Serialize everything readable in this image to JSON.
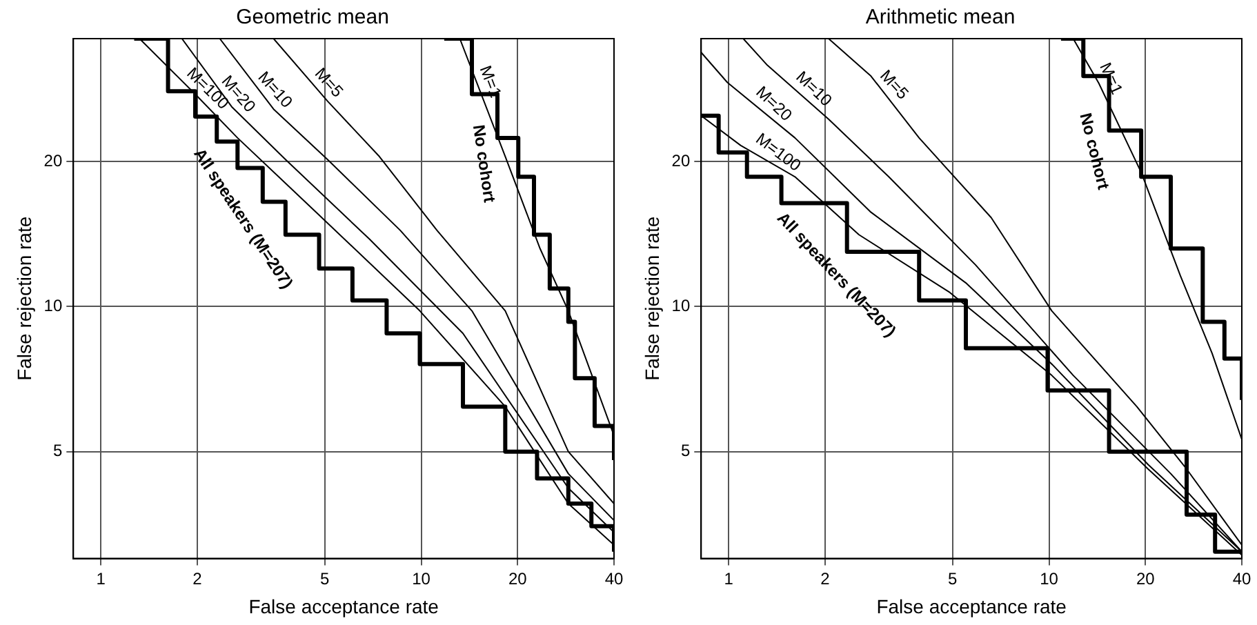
{
  "chart_data": [
    {
      "type": "line",
      "title": "Geometric mean",
      "xlabel": "False acceptance rate",
      "ylabel": "False rejection rate",
      "xlim": [
        0.82,
        40
      ],
      "ylim": [
        3,
        36
      ],
      "xticks": [
        1,
        2,
        5,
        10,
        20,
        40
      ],
      "yticks": [
        5,
        10,
        20
      ],
      "log": "xy",
      "grid": true,
      "legend": false,
      "series": [
        {
          "type": "step",
          "name": "No cohort",
          "color": "#000000",
          "x": [
            11.8,
            14.4,
            17.3,
            20.1,
            22.5,
            25.2,
            28.8,
            30.2,
            34.8,
            40
          ],
          "values": [
            36,
            27.6,
            22.4,
            18.6,
            14.1,
            10.9,
            9.3,
            7.1,
            5.65,
            4.8
          ]
        },
        {
          "type": "line",
          "name": "M=1",
          "color": "#000000",
          "x": [
            13.2,
            18.3,
            23.5,
            28.8,
            40
          ],
          "values": [
            36,
            20.5,
            13.2,
            9.8,
            5.4
          ]
        },
        {
          "type": "line",
          "name": "M=5",
          "color": "#000000",
          "x": [
            3.46,
            5.1,
            7.4,
            11.2,
            18.3,
            28.8,
            40
          ],
          "values": [
            36,
            26.7,
            20.5,
            14.4,
            9.8,
            5,
            3.9
          ]
        },
        {
          "type": "line",
          "name": "M=10",
          "color": "#000000",
          "x": [
            2.35,
            3.46,
            5.1,
            8.6,
            14.4,
            28.8,
            40
          ],
          "values": [
            36,
            25.7,
            20.2,
            14.4,
            9.8,
            4.5,
            3.6
          ]
        },
        {
          "type": "line",
          "name": "M=20",
          "color": "#000000",
          "x": [
            1.79,
            2.56,
            3.77,
            6.9,
            13.5,
            28.8,
            40
          ],
          "values": [
            36,
            26,
            20.2,
            13.8,
            8.8,
            4.2,
            3.4
          ]
        },
        {
          "type": "line",
          "name": "M=100",
          "color": "#000000",
          "x": [
            1.32,
            1.97,
            2.67,
            4.7,
            9.9,
            18.3,
            28.8,
            40
          ],
          "values": [
            36,
            27.6,
            22.4,
            15.7,
            9.8,
            6.2,
            3.9,
            3.2
          ]
        },
        {
          "type": "step",
          "name": "All speakers (M=207)",
          "color": "#000000",
          "x": [
            1.27,
            1.62,
            1.97,
            2.3,
            2.67,
            3.2,
            3.77,
            4.8,
            6.1,
            7.8,
            9.9,
            13.5,
            18.3,
            23,
            28.8,
            34,
            40
          ],
          "values": [
            36,
            28,
            24.8,
            22,
            19.4,
            16.5,
            14.1,
            12,
            10.3,
            8.8,
            7.6,
            6.2,
            5,
            4.4,
            3.9,
            3.5,
            3.1
          ]
        }
      ]
    },
    {
      "type": "line",
      "title": "Arithmetic mean",
      "xlabel": "False acceptance rate",
      "ylabel": "False rejection rate",
      "xlim": [
        0.82,
        40
      ],
      "ylim": [
        3,
        36
      ],
      "xticks": [
        1,
        2,
        5,
        10,
        20,
        40
      ],
      "yticks": [
        5,
        10,
        20
      ],
      "log": "xy",
      "grid": true,
      "legend": false,
      "series": [
        {
          "type": "step",
          "name": "No cohort",
          "color": "#000000",
          "x": [
            10.9,
            12.8,
            15.4,
            19.4,
            24,
            30.2,
            35.3,
            40
          ],
          "values": [
            36,
            30.1,
            23.2,
            18.6,
            13.2,
            9.3,
            7.8,
            6.4
          ]
        },
        {
          "type": "line",
          "name": "M=1",
          "color": "#000000",
          "x": [
            11.9,
            14.3,
            19.4,
            25.7,
            32.3,
            40
          ],
          "values": [
            36,
            29.1,
            19,
            11.6,
            8,
            5.3
          ]
        },
        {
          "type": "line",
          "name": "M=5",
          "color": "#000000",
          "x": [
            2.05,
            2.78,
            3.93,
            6.6,
            10.2,
            18.8,
            26.9,
            40
          ],
          "values": [
            36,
            30.1,
            22.4,
            15.3,
            9.8,
            6.2,
            4.6,
            3.2
          ]
        },
        {
          "type": "line",
          "name": "M=10",
          "color": "#000000",
          "x": [
            1.11,
            1.32,
            2.05,
            3.16,
            5.9,
            11.9,
            24,
            40
          ],
          "values": [
            36,
            31.7,
            24.5,
            18.6,
            12.2,
            7.2,
            4.5,
            3.1
          ]
        },
        {
          "type": "line",
          "name": "M=20",
          "color": "#000000",
          "x": [
            0.82,
            0.99,
            1.61,
            2.78,
            5.5,
            10.2,
            20.4,
            40
          ],
          "values": [
            33.7,
            29.2,
            22.4,
            15.7,
            11.2,
            7.6,
            4.7,
            3.1
          ]
        },
        {
          "type": "line",
          "name": "M=100",
          "color": "#000000",
          "x": [
            0.82,
            1.09,
            1.61,
            2.55,
            4.9,
            10.2,
            20.4,
            40
          ],
          "values": [
            24.9,
            21.6,
            18.6,
            14.1,
            10.7,
            7.2,
            4.6,
            3.05
          ]
        },
        {
          "type": "step",
          "name": "All speakers (M=207)",
          "color": "#000000",
          "x": [
            0.82,
            0.93,
            1.14,
            1.46,
            2.34,
            3.93,
            5.5,
            9.9,
            15.4,
            26.9,
            33,
            40
          ],
          "values": [
            24.9,
            20.9,
            18.6,
            16.4,
            13,
            10.3,
            8.2,
            6.7,
            5,
            3.7,
            3.1,
            3.1
          ]
        }
      ]
    }
  ]
}
